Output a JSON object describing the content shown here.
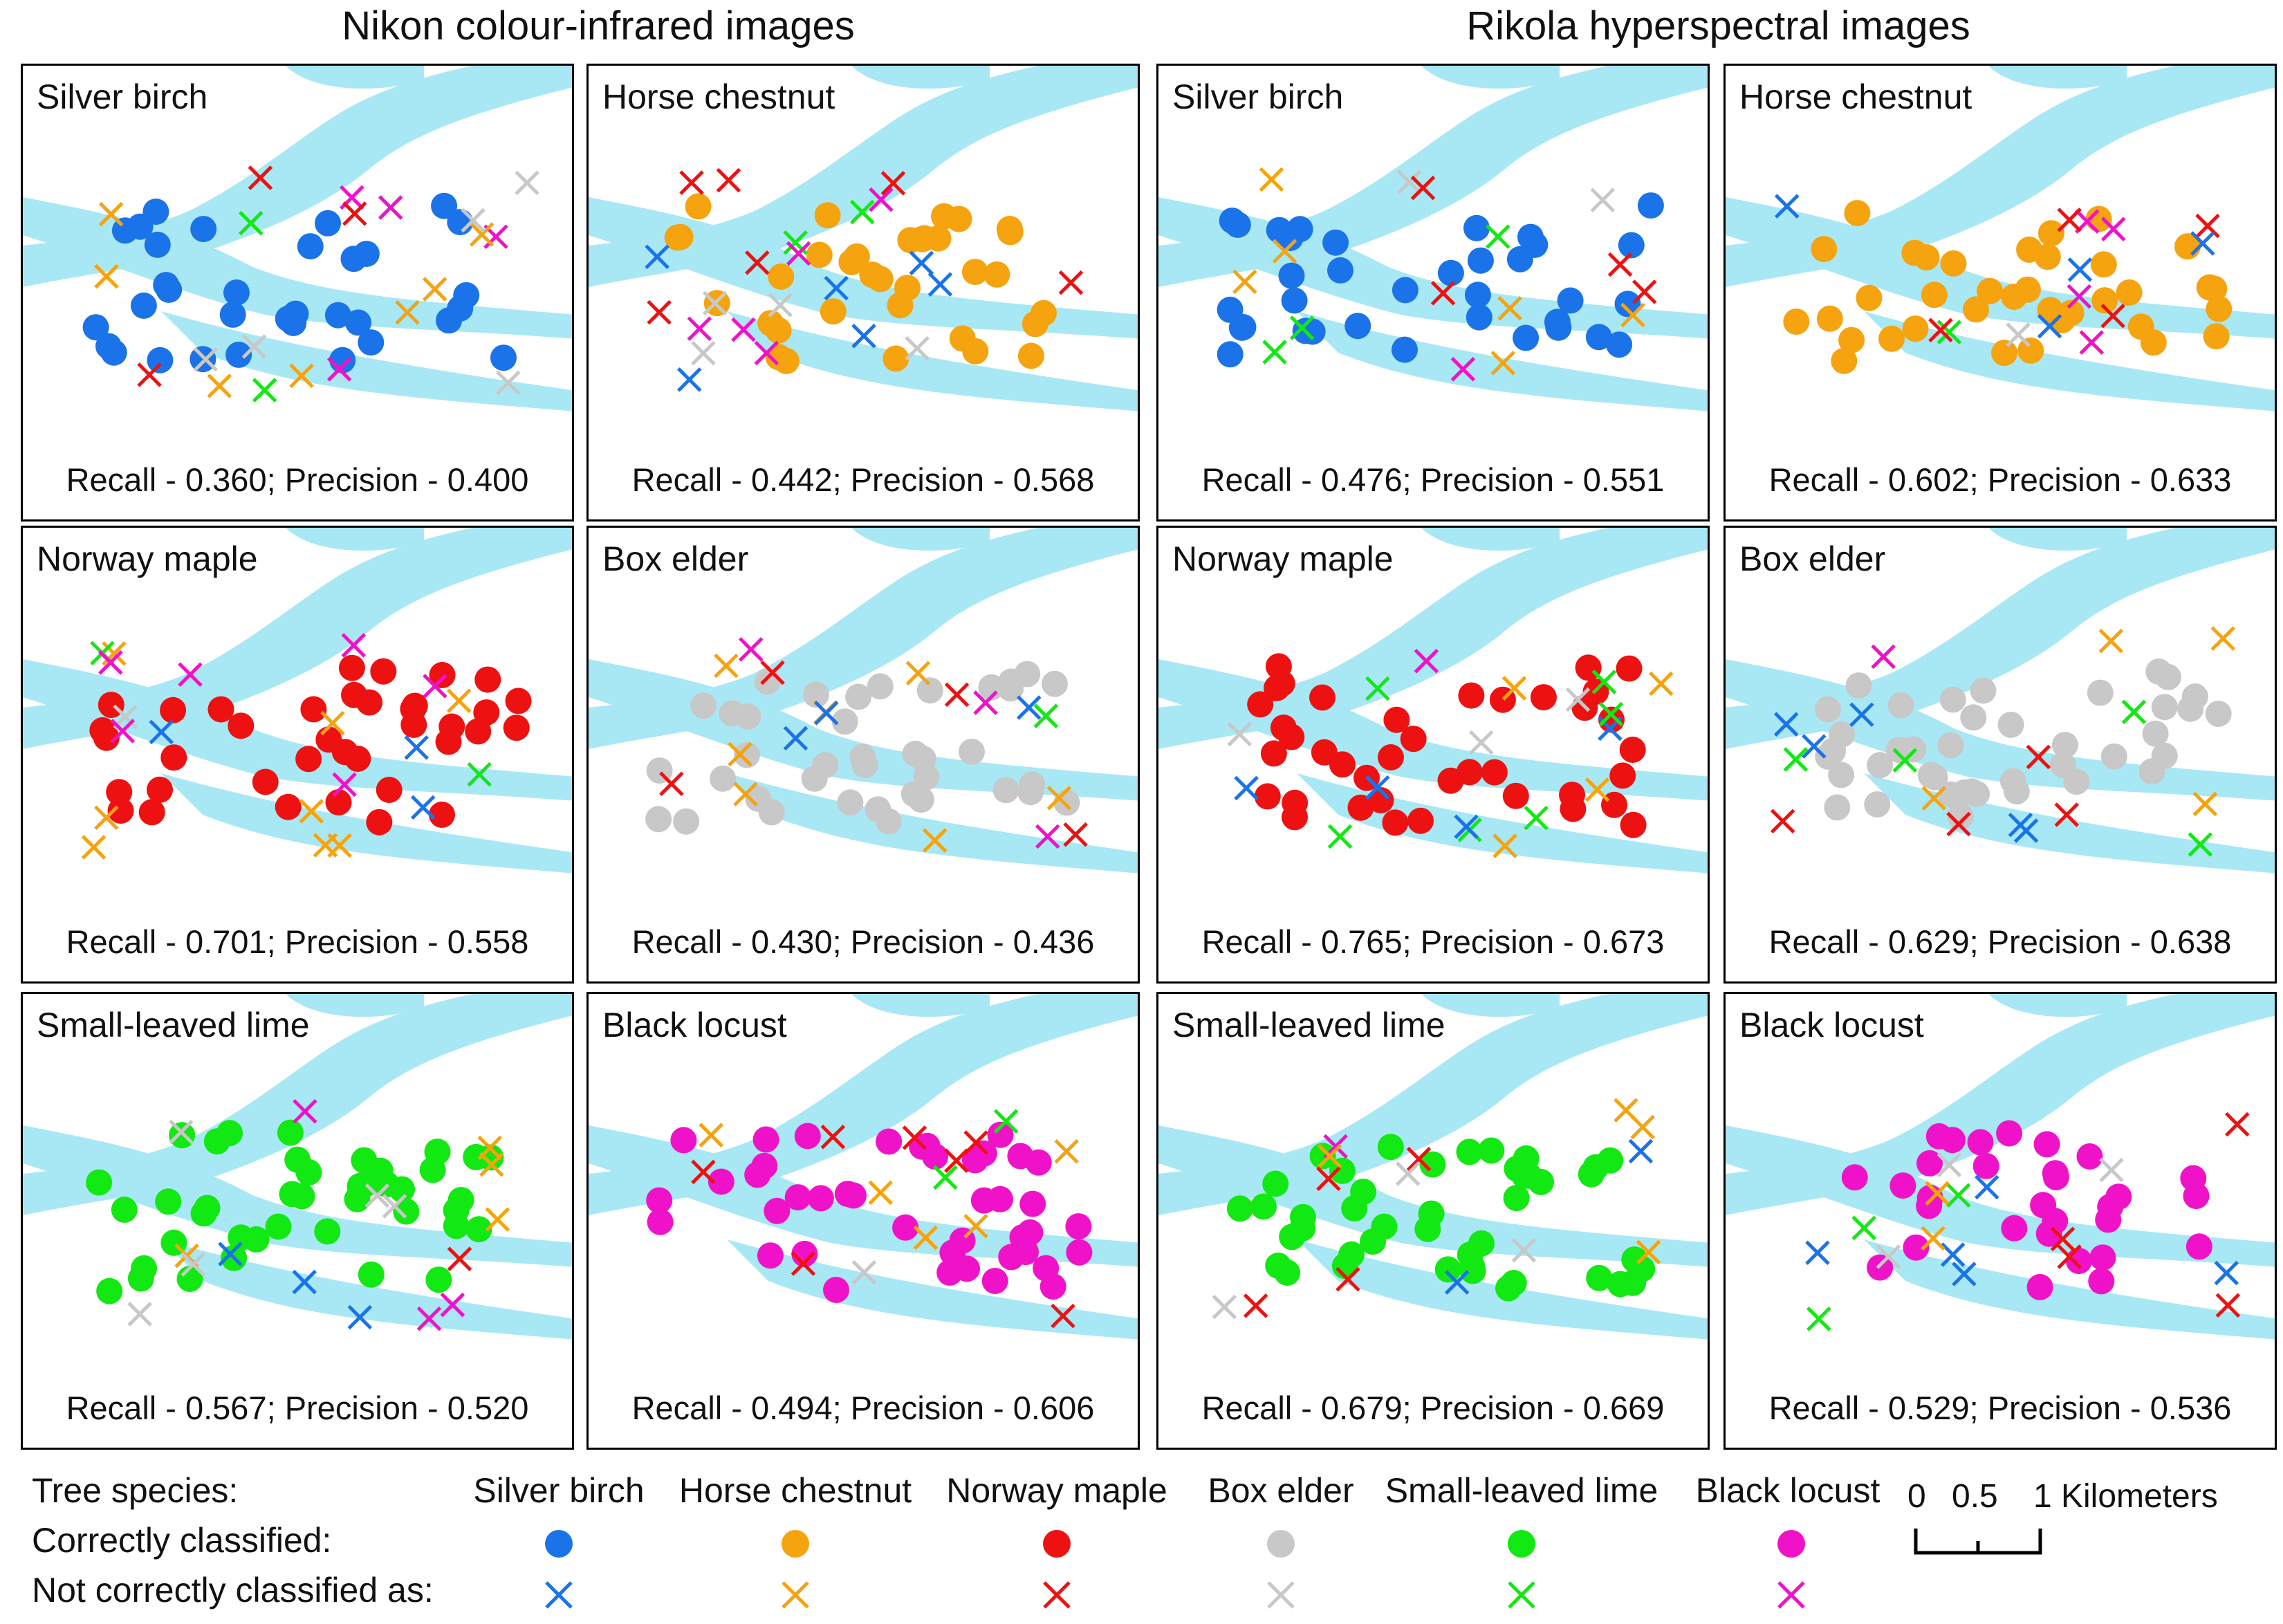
{
  "headings": {
    "nikon": "Nikon colour-infrared images",
    "rikola": "Rikola hyperspectral images"
  },
  "colors": {
    "river": "#a8e8f5",
    "Silver birch": "#1a73e8",
    "Horse chestnut": "#f5a30f",
    "Norway maple": "#ee1111",
    "Box elder": "#c8c8c8",
    "Small-leaved lime": "#12e812",
    "Black locust": "#f012c8"
  },
  "species": [
    "Silver birch",
    "Horse chestnut",
    "Norway maple",
    "Box elder",
    "Small-leaved lime",
    "Black locust"
  ],
  "panels": [
    {
      "group": "nikon",
      "title": "Silver birch",
      "metrics": "Recall - 0.360; Precision - 0.400"
    },
    {
      "group": "nikon",
      "title": "Horse chestnut",
      "metrics": "Recall - 0.442; Precision - 0.568"
    },
    {
      "group": "rikola",
      "title": "Silver birch",
      "metrics": "Recall - 0.476; Precision - 0.551"
    },
    {
      "group": "rikola",
      "title": "Horse chestnut",
      "metrics": "Recall - 0.602; Precision - 0.633"
    },
    {
      "group": "nikon",
      "title": "Norway maple",
      "metrics": "Recall - 0.701; Precision - 0.558"
    },
    {
      "group": "nikon",
      "title": "Box elder",
      "metrics": "Recall - 0.430; Precision - 0.436"
    },
    {
      "group": "rikola",
      "title": "Norway maple",
      "metrics": "Recall - 0.765; Precision - 0.673"
    },
    {
      "group": "rikola",
      "title": "Box elder",
      "metrics": "Recall - 0.629; Precision - 0.638"
    },
    {
      "group": "nikon",
      "title": "Small-leaved lime",
      "metrics": "Recall - 0.567; Precision - 0.520"
    },
    {
      "group": "nikon",
      "title": "Black locust",
      "metrics": "Recall - 0.494; Precision - 0.606"
    },
    {
      "group": "rikola",
      "title": "Small-leaved lime",
      "metrics": "Recall - 0.679; Precision - 0.669"
    },
    {
      "group": "rikola",
      "title": "Black locust",
      "metrics": "Recall - 0.529; Precision - 0.536"
    }
  ],
  "legend": {
    "tree_species_label": "Tree species:",
    "correct_label": "Correctly classified:",
    "incorrect_label": "Not correctly classified as:",
    "species_labels": [
      "Silver birch",
      "Horse chestnut",
      "Norway maple",
      "Box elder",
      "Small-leaved lime",
      "Black locust"
    ]
  },
  "scale_bar": {
    "ticks": [
      "0",
      "0.5",
      "1"
    ],
    "unit": "Kilometers"
  }
}
